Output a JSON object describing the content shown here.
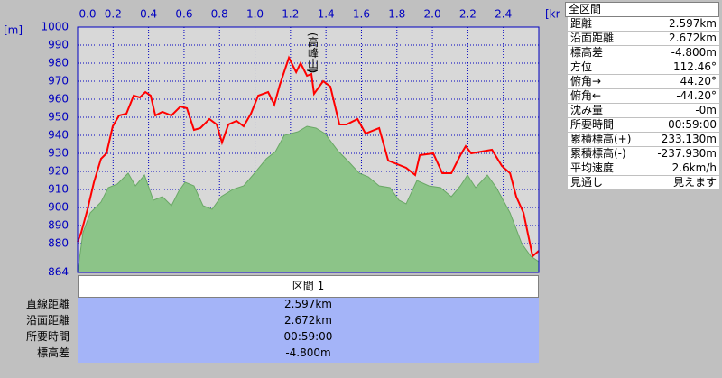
{
  "chart_data": {
    "type": "profile",
    "xlabel": "[km]",
    "ylabel": "[m]",
    "xlim": [
      0,
      2.6
    ],
    "ylim": [
      864,
      1000
    ],
    "xticks": [
      {
        "value": 0,
        "label": "0.0"
      },
      0.2,
      0.4,
      0.6,
      0.8,
      {
        "value": 1,
        "label": "1.0"
      },
      1.2,
      1.4,
      1.6,
      1.8,
      {
        "value": 2,
        "label": "2.0"
      },
      2.2,
      2.4
    ],
    "yticks": [
      864,
      880,
      890,
      900,
      910,
      920,
      930,
      940,
      950,
      960,
      970,
      980,
      990,
      1000
    ],
    "grid": true,
    "annotations": [
      "(高峰山)"
    ],
    "series": [
      {
        "style": "area",
        "color": "#8cc488",
        "x": [
          0,
          0.03,
          0.071,
          0.132,
          0.173,
          0.224,
          0.285,
          0.326,
          0.377,
          0.427,
          0.478,
          0.529,
          0.57,
          0.606,
          0.656,
          0.707,
          0.758,
          0.809,
          0.875,
          0.936,
          0.997,
          1.064,
          1.115,
          1.165,
          1.242,
          1.293,
          1.344,
          1.394,
          1.471,
          1.522,
          1.588,
          1.639,
          1.7,
          1.761,
          1.812,
          1.852,
          1.913,
          1.98,
          2.046,
          2.107,
          2.158,
          2.198,
          2.244,
          2.31,
          2.361,
          2.438,
          2.504,
          2.555,
          2.6
        ],
        "values": [
          864,
          886,
          897,
          903,
          911,
          913,
          919,
          912,
          918,
          904,
          906,
          901,
          909,
          914,
          912,
          901,
          899,
          906,
          910,
          912,
          919,
          927,
          931,
          940,
          942,
          945,
          944,
          941,
          931,
          926,
          919,
          917,
          912,
          911,
          904,
          902,
          915,
          912,
          911,
          906,
          912,
          918,
          911,
          918,
          911,
          897,
          880,
          873,
          870
        ]
      },
      {
        "style": "line",
        "color": "#ff0000",
        "x": [
          0,
          0.02,
          0.056,
          0.092,
          0.132,
          0.163,
          0.198,
          0.234,
          0.275,
          0.316,
          0.351,
          0.382,
          0.412,
          0.438,
          0.478,
          0.529,
          0.58,
          0.616,
          0.656,
          0.692,
          0.743,
          0.784,
          0.814,
          0.85,
          0.896,
          0.936,
          0.977,
          1.018,
          1.074,
          1.109,
          1.14,
          1.191,
          1.232,
          1.257,
          1.293,
          1.318,
          1.333,
          1.384,
          1.425,
          1.476,
          1.516,
          1.578,
          1.623,
          1.7,
          1.751,
          1.802,
          1.852,
          1.903,
          1.929,
          2.005,
          2.056,
          2.107,
          2.158,
          2.188,
          2.219,
          2.336,
          2.392,
          2.438,
          2.473,
          2.514,
          2.565,
          2.6
        ],
        "values": [
          881,
          886,
          899,
          914,
          927,
          930,
          945,
          951,
          952,
          962,
          961,
          964,
          962,
          951,
          953,
          951,
          956,
          955,
          943,
          944,
          949,
          946,
          936,
          946,
          948,
          945,
          952,
          962,
          964,
          957,
          968,
          983,
          975,
          980,
          973,
          974,
          963,
          970,
          967,
          946,
          946,
          949,
          941,
          944,
          926,
          924,
          922,
          918,
          929,
          930,
          919,
          919,
          929,
          934,
          930,
          932,
          923,
          919,
          906,
          897,
          873,
          876
        ]
      }
    ]
  },
  "summary": {
    "title": "全区間",
    "rows": [
      [
        "距離",
        "2.597km"
      ],
      [
        "沿面距離",
        "2.672km"
      ],
      [
        "標高差",
        "-4.800m"
      ],
      [
        "方位",
        "112.46°"
      ],
      [
        "俯角→",
        "44.20°"
      ],
      [
        "俯角←",
        "-44.20°"
      ],
      [
        "沈み量",
        "-0m"
      ],
      [
        "所要時間",
        "00:59:00"
      ],
      [
        "累積標高(+)",
        "233.130m"
      ],
      [
        "累積標高(-)",
        "-237.930m"
      ],
      [
        "平均速度",
        "2.6km/h"
      ],
      [
        "見通し",
        "見えます"
      ]
    ]
  },
  "section": {
    "title": "区間 1",
    "rows": [
      [
        "直線距離",
        "2.597km"
      ],
      [
        "沿面距離",
        "2.672km"
      ],
      [
        "所要時間",
        "00:59:00"
      ],
      [
        "標高差",
        "-4.800m"
      ]
    ]
  }
}
